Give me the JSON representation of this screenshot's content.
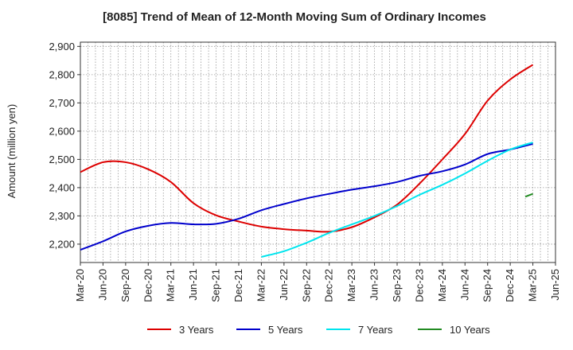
{
  "chart_data": {
    "type": "line",
    "title": "[8085]  Trend of Mean of 12-Month Moving Sum of Ordinary Incomes",
    "xlabel": "",
    "ylabel": "Amount (million yen)",
    "ylim": [
      2135,
      2915
    ],
    "yticks": [
      2200,
      2300,
      2400,
      2500,
      2600,
      2700,
      2800,
      2900
    ],
    "ytick_labels": [
      "2,200",
      "2,300",
      "2,400",
      "2,500",
      "2,600",
      "2,700",
      "2,800",
      "2,900"
    ],
    "x_start": "Mar-20",
    "x_months": 63,
    "xtick_labels": [
      "Mar-20",
      "Jun-20",
      "Sep-20",
      "Dec-20",
      "Mar-21",
      "Jun-21",
      "Sep-21",
      "Dec-21",
      "Mar-22",
      "Jun-22",
      "Sep-22",
      "Dec-22",
      "Mar-23",
      "Jun-23",
      "Sep-23",
      "Dec-23",
      "Mar-24",
      "Jun-24",
      "Sep-24",
      "Dec-24",
      "Mar-25",
      "Jun-25"
    ],
    "grid": true,
    "legend_position": "bottom",
    "series": [
      {
        "name": "3 Years",
        "color": "#dd0000",
        "x": [
          0,
          3,
          6,
          9,
          12,
          15,
          18,
          21,
          24,
          27,
          30,
          33,
          36,
          39,
          42,
          45,
          48,
          51,
          54,
          57,
          60
        ],
        "values": [
          2455,
          2490,
          2490,
          2465,
          2420,
          2345,
          2302,
          2280,
          2262,
          2253,
          2248,
          2244,
          2260,
          2295,
          2340,
          2415,
          2500,
          2590,
          2708,
          2783,
          2835
        ]
      },
      {
        "name": "5 Years",
        "color": "#0000cc",
        "x": [
          0,
          3,
          6,
          9,
          12,
          15,
          18,
          21,
          24,
          27,
          30,
          33,
          36,
          39,
          42,
          45,
          48,
          51,
          54,
          57,
          60
        ],
        "values": [
          2180,
          2210,
          2245,
          2265,
          2275,
          2270,
          2272,
          2290,
          2320,
          2342,
          2362,
          2378,
          2393,
          2405,
          2420,
          2442,
          2458,
          2482,
          2519,
          2535,
          2555
        ]
      },
      {
        "name": "7 Years",
        "color": "#00e5ee",
        "x": [
          24,
          27,
          30,
          33,
          36,
          39,
          42,
          45,
          48,
          51,
          54,
          57,
          60
        ],
        "values": [
          2155,
          2175,
          2205,
          2240,
          2270,
          2300,
          2335,
          2375,
          2410,
          2450,
          2495,
          2535,
          2560
        ]
      },
      {
        "name": "10 Years",
        "color": "#228b22",
        "x": [
          59,
          60
        ],
        "values": [
          2368,
          2378
        ]
      }
    ]
  }
}
